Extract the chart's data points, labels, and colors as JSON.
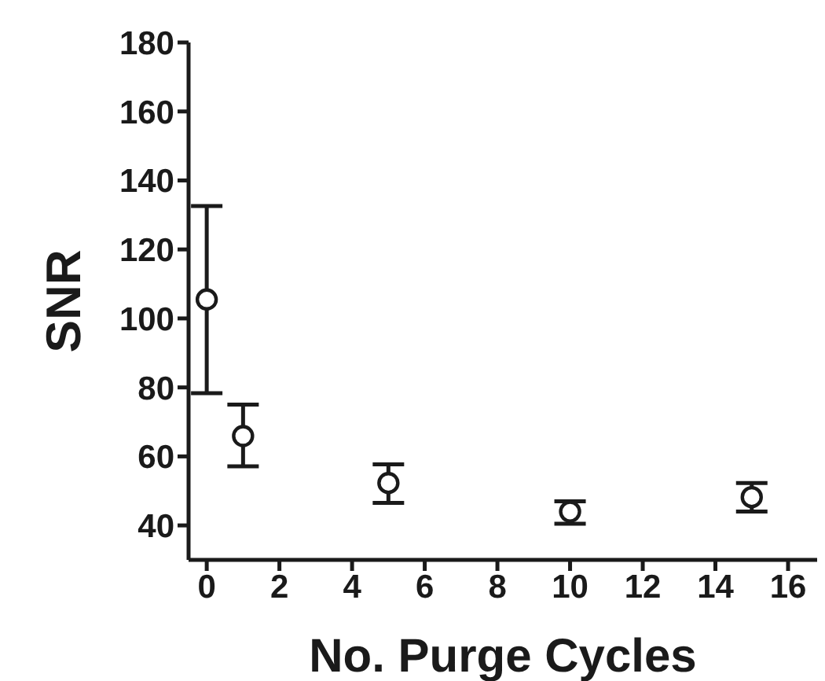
{
  "chart_data": {
    "type": "scatter",
    "xlabel": "No. Purge Cycles",
    "ylabel": "SNR",
    "x": [
      0,
      1,
      5,
      10,
      15
    ],
    "values": [
      105.5,
      65.9,
      52.3,
      44,
      48.2
    ],
    "errors": [
      [
        78.3,
        132.6
      ],
      [
        57.1,
        75
      ],
      [
        46.5,
        57.7
      ],
      [
        40.5,
        47
      ],
      [
        44,
        52.3
      ]
    ],
    "color": "#1a1a1a",
    "marker": "circle",
    "xlim": [
      -0.5,
      16.8
    ],
    "xticks": [
      0,
      2,
      4,
      6,
      8,
      10,
      12,
      14,
      16
    ],
    "ylim": [
      30,
      180
    ],
    "yticks": [
      40,
      60,
      80,
      100,
      120,
      140,
      160,
      180
    ],
    "grid": false
  }
}
